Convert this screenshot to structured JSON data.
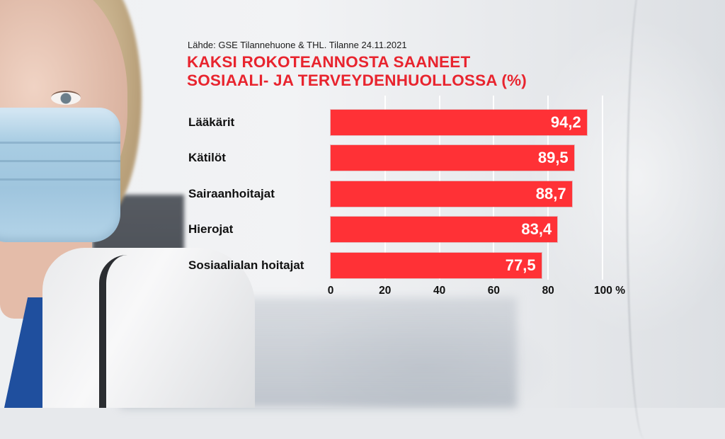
{
  "source": "Lähde: GSE Tilannehuone & THL. Tilanne 24.11.2021",
  "title_line1": "KAKSI ROKOTEANNOSTA SAANEET",
  "title_line2": "SOSIAALI- JA TERVEYDENHUOLLOSSA (%)",
  "colors": {
    "bar": "#ff3136",
    "title": "#e8242e",
    "label": "#111111",
    "value": "#ffffff"
  },
  "rows": [
    {
      "label": "Lääkärit",
      "value": 94.2,
      "display": "94,2"
    },
    {
      "label": "Kätilöt",
      "value": 89.5,
      "display": "89,5"
    },
    {
      "label": "Sairaanhoitajat",
      "value": 88.7,
      "display": "88,7"
    },
    {
      "label": "Hierojat",
      "value": 83.4,
      "display": "83,4"
    },
    {
      "label": "Sosiaalialan hoitajat",
      "value": 77.5,
      "display": "77,5"
    }
  ],
  "ticks": [
    "0",
    "20",
    "40",
    "60",
    "80",
    "100 %"
  ],
  "chart_data": {
    "type": "bar",
    "orientation": "horizontal",
    "title": "KAKSI ROKOTEANNOSTA SAANEET SOSIAALI- JA TERVEYDENHUOLLOSSA (%)",
    "subtitle": "Lähde: GSE Tilannehuone & THL. Tilanne 24.11.2021",
    "categories": [
      "Lääkärit",
      "Kätilöt",
      "Sairaanhoitajat",
      "Hierojat",
      "Sosiaalialan hoitajat"
    ],
    "values": [
      94.2,
      89.5,
      88.7,
      83.4,
      77.5
    ],
    "data_labels": [
      "94,2",
      "89,5",
      "88,7",
      "83,4",
      "77,5"
    ],
    "xlabel": "%",
    "ylabel": "",
    "xlim": [
      0,
      100
    ],
    "xticks": [
      0,
      20,
      40,
      60,
      80,
      100
    ],
    "xtick_labels": [
      "0",
      "20",
      "40",
      "60",
      "80",
      "100 %"
    ],
    "grid": true,
    "legend": "none",
    "bar_color": "#ff3136"
  }
}
